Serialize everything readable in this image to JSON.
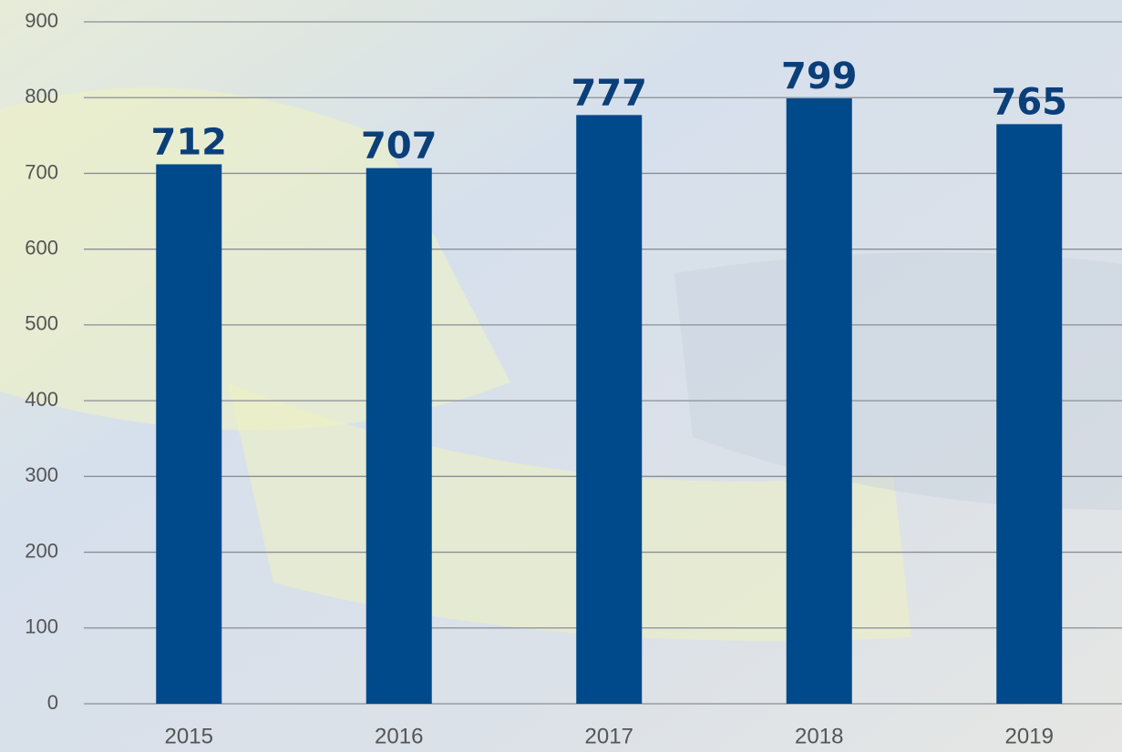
{
  "chart_data": {
    "type": "bar",
    "categories": [
      "2015",
      "2016",
      "2017",
      "2018",
      "2019"
    ],
    "values": [
      712,
      707,
      777,
      799,
      765
    ],
    "color": "#00498a",
    "ylim": [
      0,
      900
    ],
    "yticks": [
      0,
      100,
      200,
      300,
      400,
      500,
      600,
      700,
      800,
      900
    ],
    "grid": true
  }
}
